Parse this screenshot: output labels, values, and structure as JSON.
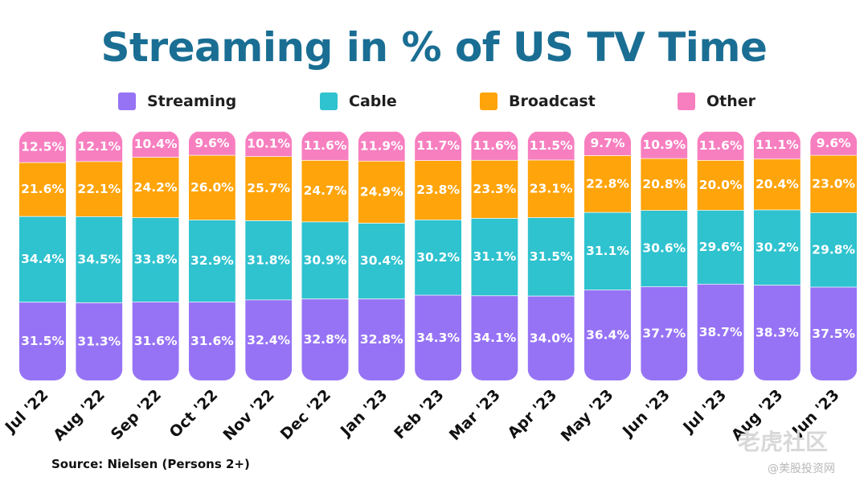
{
  "title": "Streaming in % of US TV Time",
  "legend": [
    {
      "label": "Streaming",
      "color": "#9673f5"
    },
    {
      "label": "Cable",
      "color": "#2fc2cf"
    },
    {
      "label": "Broadcast",
      "color": "#ffa40a"
    },
    {
      "label": "Other",
      "color": "#f77fc0"
    }
  ],
  "source": "Source: Nielsen (Persons 2+)",
  "watermark": {
    "logo_text": "老虎社区",
    "site_text": "@美股投资网"
  },
  "chart_data": {
    "type": "bar",
    "stacked": true,
    "title": "Streaming in % of US TV Time",
    "categories": [
      "Jul '22",
      "Aug '22",
      "Sep '22",
      "Oct '22",
      "Nov '22",
      "Dec '22",
      "Jan '23",
      "Feb '23",
      "Mar '23",
      "Apr '23",
      "May '23",
      "Jun '23",
      "Jul '23",
      "Aug '23",
      "Jun '23"
    ],
    "series": [
      {
        "name": "Streaming",
        "color": "#9673f5",
        "values": [
          31.5,
          31.3,
          31.6,
          31.6,
          32.4,
          32.8,
          32.8,
          34.3,
          34.1,
          34.0,
          36.4,
          37.7,
          38.7,
          38.3,
          37.5
        ]
      },
      {
        "name": "Cable",
        "color": "#2fc2cf",
        "values": [
          34.4,
          34.5,
          33.8,
          32.9,
          31.8,
          30.9,
          30.4,
          30.2,
          31.1,
          31.5,
          31.1,
          30.6,
          29.6,
          30.2,
          29.8
        ]
      },
      {
        "name": "Broadcast",
        "color": "#ffa40a",
        "values": [
          21.6,
          22.1,
          24.2,
          26.0,
          25.7,
          24.7,
          24.9,
          23.8,
          23.3,
          23.1,
          22.8,
          20.8,
          20.0,
          20.4,
          23.0
        ]
      },
      {
        "name": "Other",
        "color": "#f77fc0",
        "values": [
          12.5,
          12.1,
          10.4,
          9.6,
          10.1,
          11.6,
          11.9,
          11.7,
          11.6,
          11.5,
          9.7,
          10.9,
          11.6,
          11.1,
          9.6
        ]
      }
    ],
    "value_suffix": "%",
    "ylim": [
      0,
      100
    ],
    "xlabel": "",
    "ylabel": "",
    "grid": false,
    "legend_position": "top"
  }
}
